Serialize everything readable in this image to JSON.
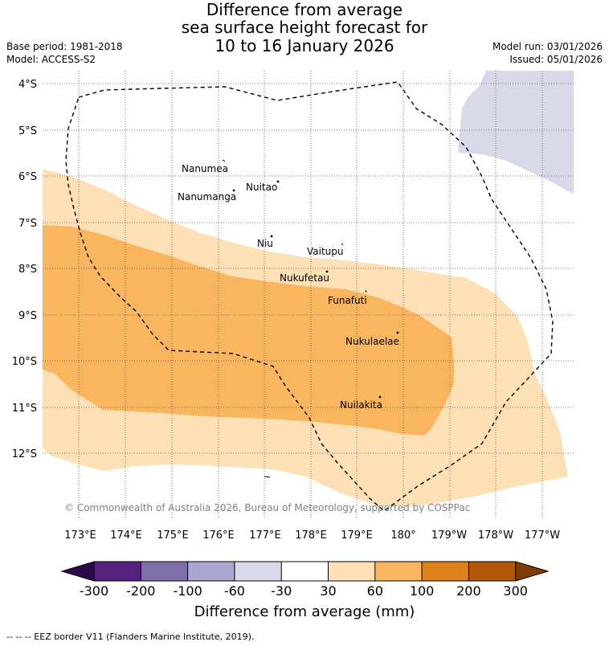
{
  "title_lines": [
    "Difference from average",
    "sea surface height forecast for",
    "10 to 16 January 2026"
  ],
  "metadata": {
    "base_period": "Base period: 1981-2018",
    "model": "Model: ACCESS-S2",
    "model_run": "Model run: 03/01/2026",
    "issued": "Issued: 05/01/2026"
  },
  "axes": {
    "latitude_labels": [
      "4°S",
      "5°S",
      "6°S",
      "7°S",
      "8°S",
      "9°S",
      "10°S",
      "11°S",
      "12°S"
    ],
    "longitude_labels": [
      "173°E",
      "174°E",
      "175°E",
      "176°E",
      "177°E",
      "178°E",
      "179°E",
      "180°",
      "179°W",
      "178°W",
      "177°W"
    ]
  },
  "islands": [
    "Nanumea",
    "Nuitao",
    "Nanumanga",
    "Niu",
    "Vaitupu",
    "Nukufetau",
    "Funafuti",
    "Nukulaelae",
    "Nuilakita"
  ],
  "copyright": "© Commonwealth of Australia 2026, Bureau of Meteorology, supported by COSPPac",
  "colorbar": {
    "title": "Difference from average (mm)",
    "tick_labels": [
      "-300",
      "-200",
      "-100",
      "-60",
      "-30",
      "30",
      "60",
      "100",
      "200",
      "300"
    ],
    "colors": {
      "lt_-300": "#2d0a4e",
      "-300_-200": "#54217f",
      "-200_-100": "#7f6ea8",
      "-100_-60": "#aba6cf",
      "-60_-30": "#d8d8e9",
      "-30_30": "#ffffff",
      "30_60": "#fde0b6",
      "60_100": "#fab55f",
      "100_200": "#e0821c",
      "200_300": "#b05a08",
      "gt_300": "#7f3b08"
    }
  },
  "legend_footer": "--  --  -- EEZ border V11 (Flanders Marine Institute, 2019)."
}
